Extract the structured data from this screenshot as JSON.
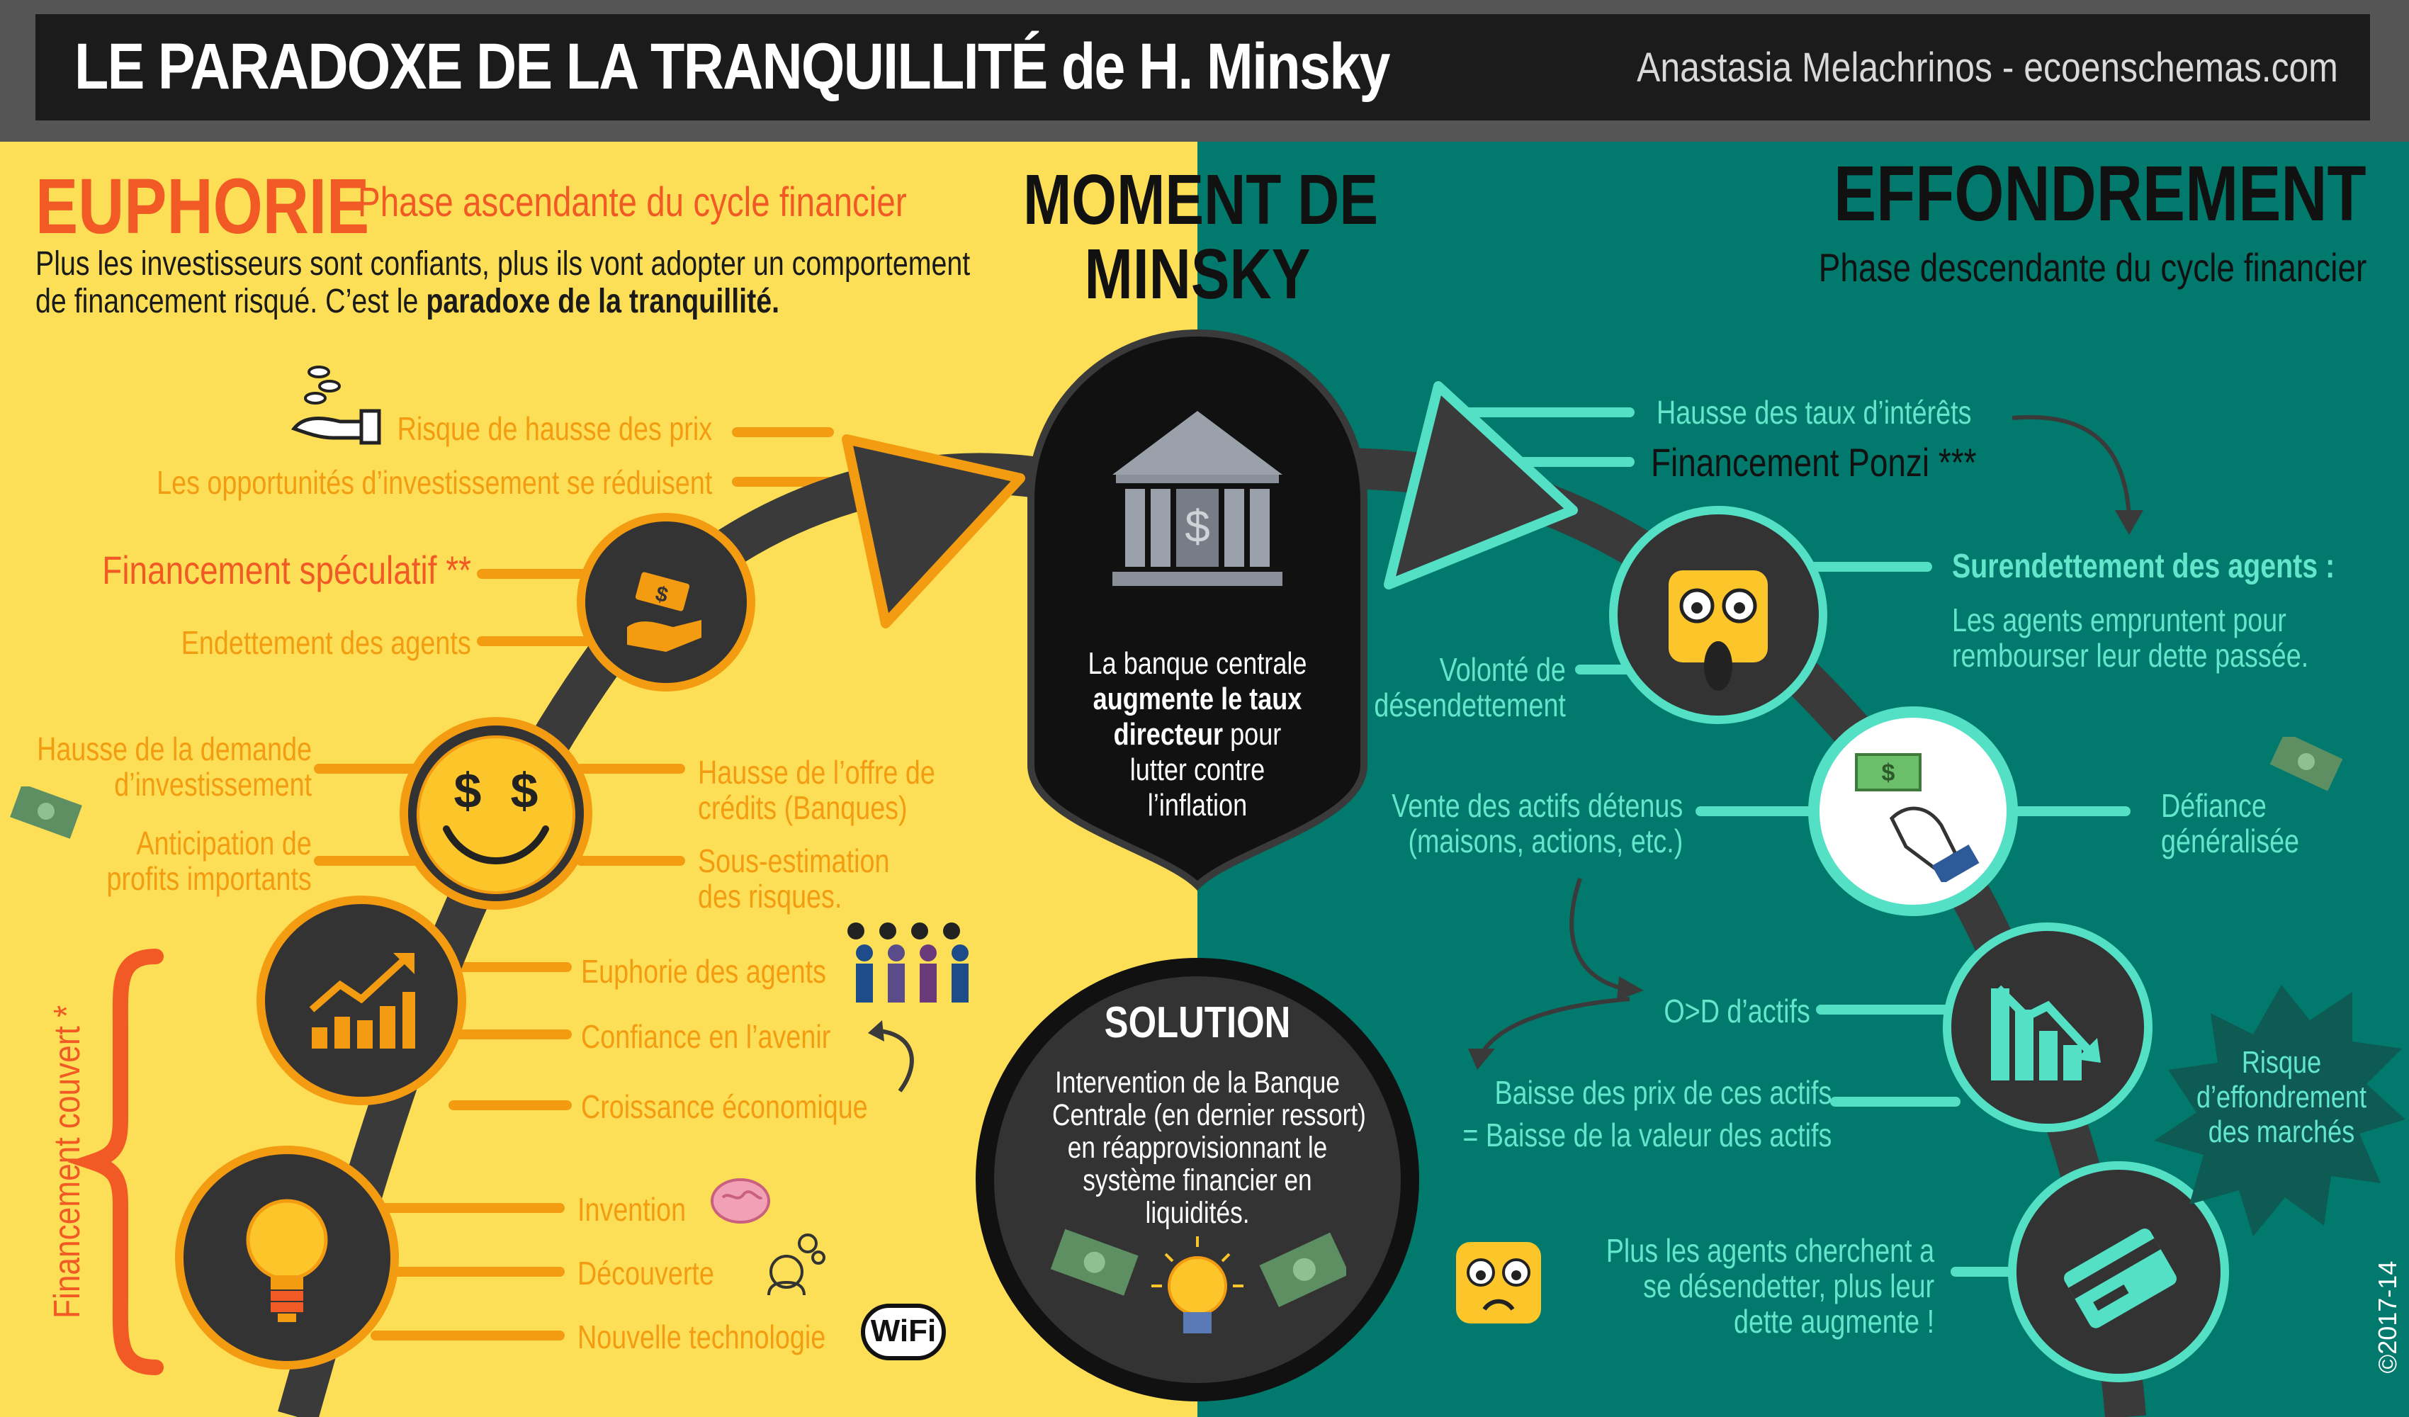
{
  "title": "LE PARADOXE DE LA TRANQUILLITÉ de H. Minsky",
  "author": "Anastasia Melachrinos - ecoenschemas.com",
  "copyright": "©2017-14",
  "colors": {
    "yellow": "#fddf57",
    "teal": "#017a6d",
    "dark": "#333333",
    "orange": "#f39c12",
    "mint": "#53e0c4",
    "red_orange": "#f15a24"
  },
  "euphorie": {
    "heading": "EUPHORIE",
    "subtitle": "Phase ascendante du cycle financier",
    "intro_1": "Plus les investisseurs sont confiants, plus ils vont adopter un comportement",
    "intro_2a": "de financement risqué. C’est le ",
    "intro_2b": "paradoxe de la tranquillité."
  },
  "moment": {
    "line1": "MOMENT DE",
    "line2": "MINSKY"
  },
  "effondrement": {
    "heading": "EFFONDREMENT",
    "subtitle": "Phase descendante du cycle financier"
  },
  "central_bank": {
    "t1": "La banque centrale",
    "t2": "augmente le taux",
    "t3a": "directeur",
    "t3b": " pour",
    "t4": "lutter contre",
    "t5": "l’inflation"
  },
  "solution": {
    "heading": "SOLUTION",
    "lines": [
      "Intervention de la Banque",
      "Centrale (en dernier ressort)",
      "en réapprovisionnant le",
      "système financier en",
      "liquidités."
    ]
  },
  "left_labels": {
    "risque_prix": "Risque de hausse des prix",
    "opportunites": "Les opportunités d’investissement se réduisent",
    "fin_speculatif": "Financement spéculatif **",
    "endettement": "Endettement des agents",
    "hausse_demande_1": "Hausse de la demande",
    "hausse_demande_2": "d’investissement",
    "anticipation_1": "Anticipation de",
    "anticipation_2": "profits importants",
    "offre_credits_1": "Hausse de l’offre de",
    "offre_credits_2": "crédits (Banques)",
    "sous_estimation_1": "Sous-estimation",
    "sous_estimation_2": "des risques.",
    "euphorie_agents": "Euphorie des agents",
    "confiance": "Confiance en l’avenir",
    "croissance": "Croissance économique",
    "invention": "Invention",
    "decouverte": "Découverte",
    "technologie": "Nouvelle technologie",
    "fin_couvert": "Financement couvert *",
    "wifi": "WiFi"
  },
  "right_labels": {
    "hausse_taux": "Hausse des taux d’intérêts",
    "ponzi": "Financement Ponzi ***",
    "surendettement": "Surendettement des agents :",
    "surendettement_desc_1": "Les agents empruntent pour",
    "surendettement_desc_2": "rembourser leur dette passée.",
    "volonte_1": "Volonté de",
    "volonte_2": "désendettement",
    "vente_1": "Vente des actifs détenus",
    "vente_2": "(maisons, actions, etc.)",
    "defiance_1": "Défiance",
    "defiance_2": "généralisée",
    "od": "O>D d’actifs",
    "baisse_1": "Baisse des prix de ces actifs",
    "baisse_2": "= Baisse de la valeur des actifs",
    "risque_1": "Risque",
    "risque_2": "d’effondrement",
    "risque_3": "des marchés",
    "plus_1": "Plus les agents cherchent a",
    "plus_2": "se désendetter, plus leur",
    "plus_3": "dette augmente !"
  },
  "icons": [
    "coin-hand-icon",
    "money-hand-icon",
    "smiley-dollar-eyes-icon",
    "growth-chart-icon",
    "lightbulb-icon",
    "bank-icon",
    "shocked-face-icon",
    "money-handshake-icon",
    "falling-chart-icon",
    "credit-card-icon",
    "worried-face-icon",
    "people-money-icon",
    "brain-icon",
    "gears-head-icon",
    "banknote-icon"
  ]
}
